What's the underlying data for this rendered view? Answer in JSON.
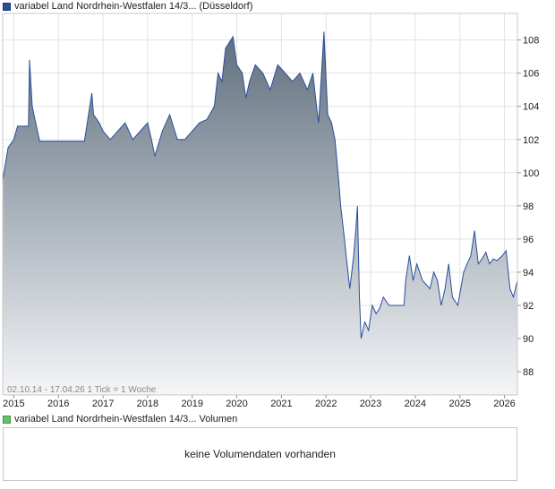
{
  "legend": {
    "price_label": "variabel Land Nordrhein-Westfalen 14/3... (Düsseldorf)",
    "volume_label": "variabel Land Nordrhein-Westfalen 14/3... Volumen"
  },
  "colors": {
    "line": "#2a4d9b",
    "area_top": "#5f6f7e",
    "area_bottom": "#f4f5f7",
    "grid": "#e3e3e3",
    "frame": "#c8c8c8",
    "volume_swatch": "#66c26a"
  },
  "range_info": "02.10.14 - 17.04.26   1 Tick = 1 Woche",
  "volume_panel": {
    "message": "keine Volumendaten vorhanden"
  },
  "chart_data": {
    "type": "area",
    "title": "variabel Land Nordrhein-Westfalen 14/3... (Düsseldorf)",
    "x_range": [
      "2014-10-02",
      "2026-04-17"
    ],
    "x_ticks": [
      "2015",
      "2016",
      "2017",
      "2018",
      "2019",
      "2020",
      "2021",
      "2022",
      "2023",
      "2024",
      "2025",
      "2026"
    ],
    "y_ticks": [
      88,
      90,
      92,
      94,
      96,
      98,
      100,
      102,
      104,
      106,
      108
    ],
    "ylim": [
      86.6,
      109.6
    ],
    "y_axis_side": "right",
    "grid": true,
    "series": [
      {
        "x": [
          "2014-10-02",
          "2014-11-15",
          "2015-01-01",
          "2015-02-01",
          "2015-05-01",
          "2015-05-10",
          "2015-06-01",
          "2015-06-15",
          "2015-08-01",
          "2015-08-15",
          "2015-12-01",
          "2016-04-01",
          "2016-08-01",
          "2016-10-01",
          "2016-10-15",
          "2016-12-01",
          "2017-01-01",
          "2017-03-01",
          "2017-05-01",
          "2017-07-01",
          "2017-09-01",
          "2017-11-01",
          "2018-01-01",
          "2018-02-01",
          "2018-03-01",
          "2018-05-01",
          "2018-07-01",
          "2018-09-01",
          "2018-11-01",
          "2019-01-01",
          "2019-03-01",
          "2019-05-01",
          "2019-07-01",
          "2019-08-01",
          "2019-09-01",
          "2019-10-01",
          "2019-12-01",
          "2020-01-01",
          "2020-02-15",
          "2020-03-15",
          "2020-04-15",
          "2020-06-01",
          "2020-08-01",
          "2020-10-01",
          "2020-12-01",
          "2021-02-01",
          "2021-04-01",
          "2021-06-01",
          "2021-08-01",
          "2021-09-15",
          "2021-10-15",
          "2021-11-01",
          "2021-12-15",
          "2022-01-15",
          "2022-02-15",
          "2022-03-15",
          "2022-04-15",
          "2022-05-01",
          "2022-06-01",
          "2022-06-15",
          "2022-07-15",
          "2022-08-15",
          "2022-09-01",
          "2022-09-15",
          "2022-10-01",
          "2022-10-15",
          "2022-11-15",
          "2022-12-15",
          "2023-01-15",
          "2023-02-15",
          "2023-03-15",
          "2023-04-15",
          "2023-06-01",
          "2023-08-01",
          "2023-09-15",
          "2023-10-01",
          "2023-10-15",
          "2023-11-15",
          "2023-12-15",
          "2024-01-15",
          "2024-03-01",
          "2024-05-01",
          "2024-06-01",
          "2024-07-01",
          "2024-08-01",
          "2024-09-01",
          "2024-10-01",
          "2024-11-01",
          "2024-12-15",
          "2025-02-01",
          "2025-03-01",
          "2025-04-01",
          "2025-05-01",
          "2025-06-01",
          "2025-07-01",
          "2025-08-01",
          "2025-09-01",
          "2025-10-01",
          "2025-11-01",
          "2025-12-15",
          "2026-01-15",
          "2026-02-15",
          "2026-03-15",
          "2026-04-17"
        ],
        "values": [
          99.5,
          101.5,
          102.0,
          102.8,
          102.8,
          106.8,
          104.0,
          103.5,
          101.9,
          101.9,
          101.9,
          101.9,
          101.9,
          104.8,
          103.5,
          103.0,
          102.5,
          102.0,
          102.5,
          103.0,
          102.0,
          102.5,
          103.0,
          102.0,
          101.0,
          102.5,
          103.5,
          102.0,
          102.0,
          102.5,
          103.0,
          103.2,
          104.0,
          106.0,
          105.5,
          107.5,
          108.2,
          106.5,
          106.0,
          104.5,
          105.5,
          106.5,
          106.0,
          105.0,
          106.5,
          106.0,
          105.5,
          106.0,
          105.0,
          106.0,
          104.0,
          103.0,
          108.5,
          103.5,
          103.0,
          102.0,
          99.5,
          98.0,
          96.0,
          95.0,
          93.0,
          95.0,
          96.5,
          98.0,
          92.5,
          90.0,
          91.0,
          90.5,
          92.0,
          91.5,
          91.8,
          92.5,
          92.0,
          92.0,
          92.0,
          92.0,
          93.5,
          95.0,
          93.5,
          94.5,
          93.5,
          93.0,
          94.0,
          93.5,
          92.0,
          93.0,
          94.5,
          92.5,
          92.0,
          94.0,
          94.5,
          95.0,
          96.5,
          94.5,
          94.8,
          95.2,
          94.5,
          94.8,
          94.7,
          95.0,
          95.3,
          93.0,
          92.5,
          93.5
        ]
      }
    ]
  }
}
